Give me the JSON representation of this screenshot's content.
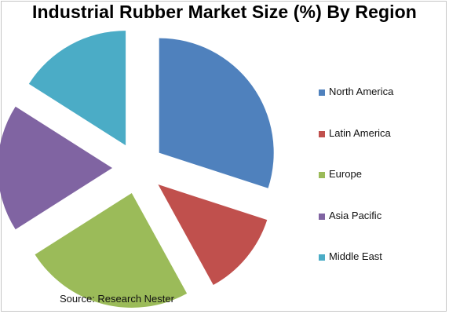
{
  "chart_data": {
    "type": "pie",
    "title": "Industrial Rubber Market Size (%) By Region",
    "slices": [
      {
        "label": "North America",
        "value": 30,
        "color": "#4F81BD"
      },
      {
        "label": "Latin America",
        "value": 12,
        "color": "#C0504D"
      },
      {
        "label": "Europe",
        "value": 24,
        "color": "#9BBB59"
      },
      {
        "label": "Asia Pacific",
        "value": 18,
        "color": "#8064A2"
      },
      {
        "label": "Middle East",
        "value": 16,
        "color": "#4BACC6"
      }
    ],
    "legend_position": "right",
    "source": "Source: Research Nester"
  }
}
